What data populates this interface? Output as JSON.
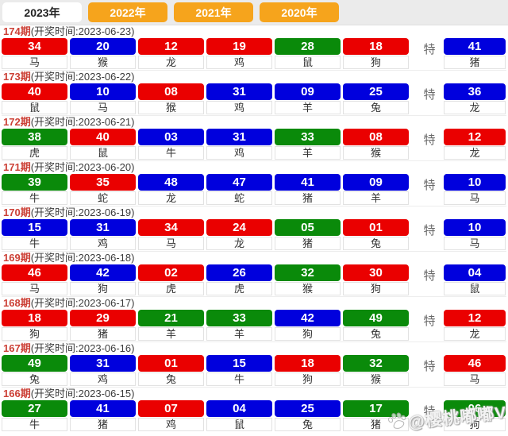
{
  "tabs": [
    {
      "label": "2023年",
      "active": true
    },
    {
      "label": "2022年",
      "active": false
    },
    {
      "label": "2021年",
      "active": false
    },
    {
      "label": "2020年",
      "active": false
    }
  ],
  "labels": {
    "time_label": "开奖时间",
    "te": "特"
  },
  "colors": {
    "red": "#ea0000",
    "blue": "#0000dd",
    "green": "#0a8a0a",
    "tab_orange": "#f6a41c",
    "period_red": "#cc4036"
  },
  "draws": [
    {
      "period": "174期",
      "date": "2023-06-23",
      "balls": [
        {
          "num": "34",
          "color": "red",
          "zodiac": "马"
        },
        {
          "num": "20",
          "color": "blue",
          "zodiac": "猴"
        },
        {
          "num": "12",
          "color": "red",
          "zodiac": "龙"
        },
        {
          "num": "19",
          "color": "red",
          "zodiac": "鸡"
        },
        {
          "num": "28",
          "color": "green",
          "zodiac": "鼠"
        },
        {
          "num": "18",
          "color": "red",
          "zodiac": "狗"
        }
      ],
      "special": {
        "num": "41",
        "color": "blue",
        "zodiac": "猪"
      }
    },
    {
      "period": "173期",
      "date": "2023-06-22",
      "balls": [
        {
          "num": "40",
          "color": "red",
          "zodiac": "鼠"
        },
        {
          "num": "10",
          "color": "blue",
          "zodiac": "马"
        },
        {
          "num": "08",
          "color": "red",
          "zodiac": "猴"
        },
        {
          "num": "31",
          "color": "blue",
          "zodiac": "鸡"
        },
        {
          "num": "09",
          "color": "blue",
          "zodiac": "羊"
        },
        {
          "num": "25",
          "color": "blue",
          "zodiac": "兔"
        }
      ],
      "special": {
        "num": "36",
        "color": "blue",
        "zodiac": "龙"
      }
    },
    {
      "period": "172期",
      "date": "2023-06-21",
      "balls": [
        {
          "num": "38",
          "color": "green",
          "zodiac": "虎"
        },
        {
          "num": "40",
          "color": "red",
          "zodiac": "鼠"
        },
        {
          "num": "03",
          "color": "blue",
          "zodiac": "牛"
        },
        {
          "num": "31",
          "color": "blue",
          "zodiac": "鸡"
        },
        {
          "num": "33",
          "color": "green",
          "zodiac": "羊"
        },
        {
          "num": "08",
          "color": "red",
          "zodiac": "猴"
        }
      ],
      "special": {
        "num": "12",
        "color": "red",
        "zodiac": "龙"
      }
    },
    {
      "period": "171期",
      "date": "2023-06-20",
      "balls": [
        {
          "num": "39",
          "color": "green",
          "zodiac": "牛"
        },
        {
          "num": "35",
          "color": "red",
          "zodiac": "蛇"
        },
        {
          "num": "48",
          "color": "blue",
          "zodiac": "龙"
        },
        {
          "num": "47",
          "color": "blue",
          "zodiac": "蛇"
        },
        {
          "num": "41",
          "color": "blue",
          "zodiac": "猪"
        },
        {
          "num": "09",
          "color": "blue",
          "zodiac": "羊"
        }
      ],
      "special": {
        "num": "10",
        "color": "blue",
        "zodiac": "马"
      }
    },
    {
      "period": "170期",
      "date": "2023-06-19",
      "balls": [
        {
          "num": "15",
          "color": "blue",
          "zodiac": "牛"
        },
        {
          "num": "31",
          "color": "blue",
          "zodiac": "鸡"
        },
        {
          "num": "34",
          "color": "red",
          "zodiac": "马"
        },
        {
          "num": "24",
          "color": "red",
          "zodiac": "龙"
        },
        {
          "num": "05",
          "color": "green",
          "zodiac": "猪"
        },
        {
          "num": "01",
          "color": "red",
          "zodiac": "兔"
        }
      ],
      "special": {
        "num": "10",
        "color": "blue",
        "zodiac": "马"
      }
    },
    {
      "period": "169期",
      "date": "2023-06-18",
      "balls": [
        {
          "num": "46",
          "color": "red",
          "zodiac": "马"
        },
        {
          "num": "42",
          "color": "blue",
          "zodiac": "狗"
        },
        {
          "num": "02",
          "color": "red",
          "zodiac": "虎"
        },
        {
          "num": "26",
          "color": "blue",
          "zodiac": "虎"
        },
        {
          "num": "32",
          "color": "green",
          "zodiac": "猴"
        },
        {
          "num": "30",
          "color": "red",
          "zodiac": "狗"
        }
      ],
      "special": {
        "num": "04",
        "color": "blue",
        "zodiac": "鼠"
      }
    },
    {
      "period": "168期",
      "date": "2023-06-17",
      "balls": [
        {
          "num": "18",
          "color": "red",
          "zodiac": "狗"
        },
        {
          "num": "29",
          "color": "red",
          "zodiac": "猪"
        },
        {
          "num": "21",
          "color": "green",
          "zodiac": "羊"
        },
        {
          "num": "33",
          "color": "green",
          "zodiac": "羊"
        },
        {
          "num": "42",
          "color": "blue",
          "zodiac": "狗"
        },
        {
          "num": "49",
          "color": "green",
          "zodiac": "兔"
        }
      ],
      "special": {
        "num": "12",
        "color": "red",
        "zodiac": "龙"
      }
    },
    {
      "period": "167期",
      "date": "2023-06-16",
      "balls": [
        {
          "num": "49",
          "color": "green",
          "zodiac": "兔"
        },
        {
          "num": "31",
          "color": "blue",
          "zodiac": "鸡"
        },
        {
          "num": "01",
          "color": "red",
          "zodiac": "兔"
        },
        {
          "num": "15",
          "color": "blue",
          "zodiac": "牛"
        },
        {
          "num": "18",
          "color": "red",
          "zodiac": "狗"
        },
        {
          "num": "32",
          "color": "green",
          "zodiac": "猴"
        }
      ],
      "special": {
        "num": "46",
        "color": "red",
        "zodiac": "马"
      }
    },
    {
      "period": "166期",
      "date": "2023-06-15",
      "balls": [
        {
          "num": "27",
          "color": "green",
          "zodiac": "牛"
        },
        {
          "num": "41",
          "color": "blue",
          "zodiac": "猪"
        },
        {
          "num": "07",
          "color": "red",
          "zodiac": "鸡"
        },
        {
          "num": "04",
          "color": "blue",
          "zodiac": "鼠"
        },
        {
          "num": "25",
          "color": "blue",
          "zodiac": "兔"
        },
        {
          "num": "17",
          "color": "green",
          "zodiac": "猪"
        }
      ],
      "special": {
        "num": "06",
        "color": "green",
        "zodiac": "狗"
      }
    }
  ],
  "watermark": {
    "text": "@樱桃嘟嘟V",
    "icon": "paw-icon"
  }
}
